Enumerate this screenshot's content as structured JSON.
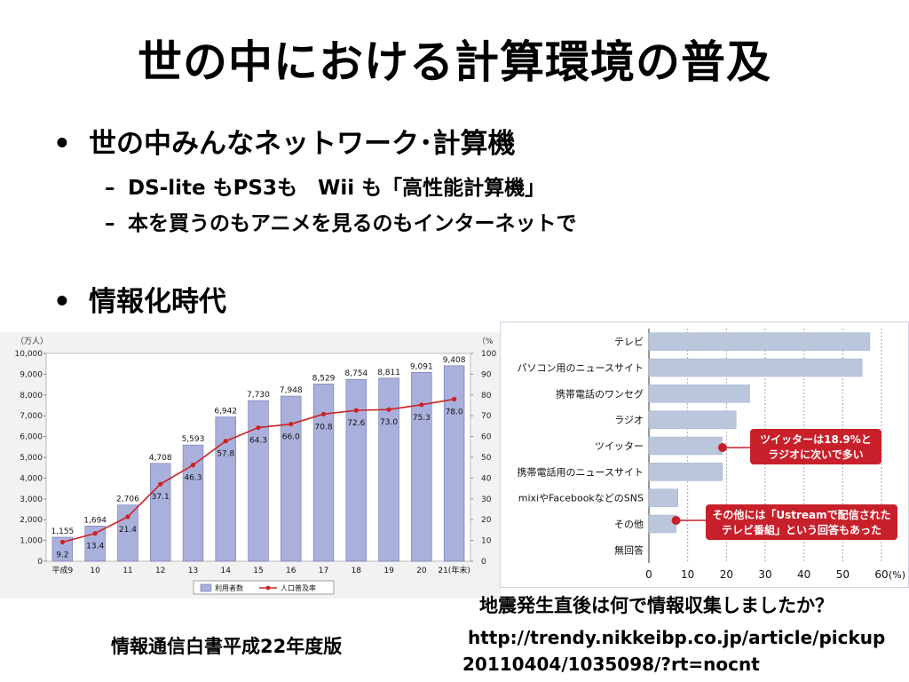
{
  "slide": {
    "title": "世の中における計算環境の普及",
    "bullets": [
      {
        "text": "世の中みんなネットワーク･計算機",
        "sub": [
          "DS-lite もPS3も　Wii も「高性能計算機」",
          "本を買うのもアニメを見るのもインターネットで"
        ]
      },
      {
        "text": "情報化時代",
        "sub": []
      }
    ],
    "bullet_glyph": "•",
    "sub_glyph": "–",
    "caption_left": "情報通信白書平成22年度版",
    "caption_right": "地震発生直後は何で情報収集しましたか？",
    "url_line1": "http://trendy.nikkeibp.co.jp/article/pickup",
    "url_line2": "20110404/1035098/?rt=nocnt"
  },
  "chart_data": [
    {
      "type": "bar",
      "categories": [
        "平成9",
        "10",
        "11",
        "12",
        "13",
        "14",
        "15",
        "16",
        "17",
        "18",
        "19",
        "20",
        "21(年末)"
      ],
      "unit_left": "（万人）",
      "unit_right": "（%",
      "ylim": [
        0,
        10000
      ],
      "y2lim": [
        0,
        100
      ],
      "yticks": [
        "0",
        "1,000",
        "2,000",
        "3,000",
        "4,000",
        "5,000",
        "6,000",
        "7,000",
        "8,000",
        "9,000",
        "10,000"
      ],
      "y2ticks": [
        "0",
        "10",
        "20",
        "30",
        "40",
        "50",
        "60",
        "70",
        "80",
        "90",
        "100"
      ],
      "series": [
        {
          "name": "利用者数",
          "type": "bar",
          "color": "#aab0dc",
          "values": [
            1155,
            1694,
            2706,
            4708,
            5593,
            6942,
            7730,
            7948,
            8529,
            8754,
            8811,
            9091,
            9408
          ],
          "labels": [
            "1,155",
            "1,694",
            "2,706",
            "4,708",
            "5,593",
            "6,942",
            "7,730",
            "7,948",
            "8,529",
            "8,754",
            "8,811",
            "9,091",
            "9,408"
          ]
        },
        {
          "name": "人口普及率",
          "type": "line",
          "color": "#cc2222",
          "values": [
            9.2,
            13.4,
            21.4,
            37.1,
            46.3,
            57.8,
            64.3,
            66.0,
            70.8,
            72.6,
            73.0,
            75.3,
            78.0
          ],
          "labels": [
            "9.2",
            "13.4",
            "21.4",
            "37.1",
            "46.3",
            "57.8",
            "64.3",
            "66.0",
            "70.8",
            "72.6",
            "73.0",
            "75.3",
            "78.0"
          ]
        }
      ]
    },
    {
      "type": "bar",
      "orientation": "horizontal",
      "categories": [
        "テレビ",
        "パソコン用のニュースサイト",
        "携帯電話のワンセグ",
        "ラジオ",
        "ツイッター",
        "携帯電話用のニュースサイト",
        "mixiやFacebookなどのSNS",
        "その他",
        "無回答"
      ],
      "values": [
        57,
        55,
        26,
        22.5,
        18.9,
        19,
        7.5,
        7,
        0
      ],
      "xlim": [
        0,
        60
      ],
      "xticks": [
        "0",
        "10",
        "20",
        "30",
        "40",
        "50",
        "60"
      ],
      "x_unit": "(%)",
      "bar_color": "#b9c6dc",
      "annotations": [
        {
          "text_line1": "ツイッターは18.9%と",
          "text_line2": "ラジオに次いで多い",
          "category": "ツイッター"
        },
        {
          "text_line1": "その他には「Ustreamで配信された",
          "text_line2": "テレビ番組」という回答もあった",
          "category": "その他"
        }
      ]
    }
  ]
}
